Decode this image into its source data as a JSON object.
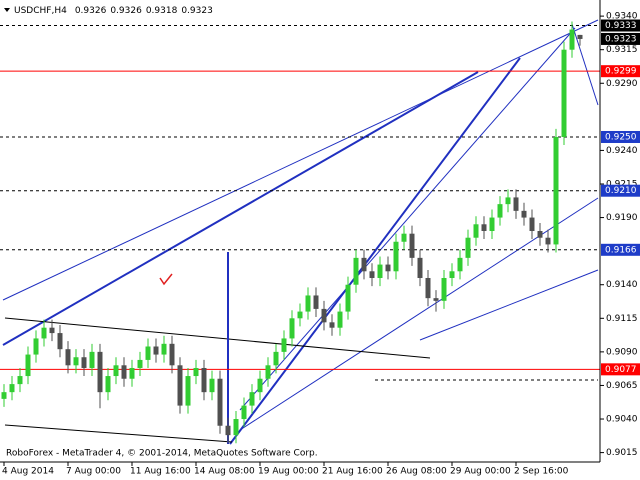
{
  "chart_data": {
    "type": "candlestick",
    "title": "USDCHF,H4",
    "footer": "RoboForex - MetaTrader 4, © 2001-2014, MetaQuotes Software Corp.",
    "up_color": "#32cd32",
    "down_color": "#505050",
    "categories": [
      "4 Aug 2014",
      null,
      null,
      null,
      null,
      null,
      null,
      null,
      "7 Aug 00:00",
      null,
      null,
      null,
      null,
      null,
      null,
      null,
      "11 Aug 16:00",
      null,
      null,
      null,
      null,
      null,
      null,
      null,
      "14 Aug 08:00",
      null,
      null,
      null,
      null,
      null,
      null,
      null,
      "19 Aug 00:00",
      null,
      null,
      null,
      null,
      null,
      null,
      null,
      "21 Aug 16:00",
      null,
      null,
      null,
      null,
      null,
      null,
      null,
      "26 Aug 08:00",
      null,
      null,
      null,
      null,
      null,
      null,
      null,
      "29 Aug 00:00",
      null,
      null,
      null,
      null,
      null,
      null,
      null,
      "2 Sep 16:00",
      null,
      null,
      null,
      null,
      null,
      null,
      null,
      null
    ],
    "open": [
      0.9055,
      0.906,
      0.9066,
      0.9072,
      0.9088,
      0.91,
      0.9108,
      0.9104,
      0.9092,
      0.908,
      0.9086,
      0.9078,
      0.909,
      0.906,
      0.9072,
      0.908,
      0.907,
      0.9078,
      0.9084,
      0.9094,
      0.9088,
      0.9096,
      0.908,
      0.905,
      0.9072,
      0.9078,
      0.906,
      0.907,
      0.9035,
      0.9028,
      0.904,
      0.905,
      0.906,
      0.907,
      0.908,
      0.909,
      0.91,
      0.9115,
      0.912,
      0.9132,
      0.9122,
      0.9112,
      0.9108,
      0.912,
      0.914,
      0.916,
      0.915,
      0.9145,
      0.9155,
      0.915,
      0.9172,
      0.9178,
      0.916,
      0.9145,
      0.913,
      0.9128,
      0.9145,
      0.915,
      0.916,
      0.9175,
      0.9185,
      0.918,
      0.919,
      0.92,
      0.9205,
      0.9195,
      0.919,
      0.918,
      0.9175,
      0.917,
      0.925,
      0.9315,
      0.9326
    ],
    "high": [
      0.9066,
      0.9072,
      0.9078,
      0.9094,
      0.9106,
      0.9114,
      0.9114,
      0.911,
      0.9098,
      0.9092,
      0.9092,
      0.9096,
      0.9096,
      0.9078,
      0.9086,
      0.9086,
      0.9084,
      0.909,
      0.91,
      0.91,
      0.9102,
      0.9102,
      0.9086,
      0.9078,
      0.9084,
      0.9084,
      0.9076,
      0.9076,
      0.9041,
      0.9046,
      0.9056,
      0.9066,
      0.9076,
      0.9086,
      0.9096,
      0.9106,
      0.9121,
      0.9126,
      0.9138,
      0.9138,
      0.9128,
      0.9118,
      0.9126,
      0.9146,
      0.9166,
      0.9166,
      0.9156,
      0.9161,
      0.9161,
      0.9178,
      0.9184,
      0.9184,
      0.9166,
      0.9151,
      0.9136,
      0.9151,
      0.9156,
      0.9166,
      0.9181,
      0.9191,
      0.9191,
      0.9196,
      0.9206,
      0.9211,
      0.9211,
      0.9201,
      0.9196,
      0.9186,
      0.9181,
      0.9256,
      0.9321,
      0.9336,
      0.9326
    ],
    "low": [
      0.9049,
      0.9054,
      0.906,
      0.9066,
      0.9082,
      0.9094,
      0.9098,
      0.9086,
      0.9074,
      0.9074,
      0.9072,
      0.9072,
      0.9048,
      0.9054,
      0.9066,
      0.9064,
      0.9064,
      0.9072,
      0.9078,
      0.9082,
      0.9082,
      0.9074,
      0.9044,
      0.9044,
      0.9066,
      0.9054,
      0.9054,
      0.9029,
      0.9022,
      0.9022,
      0.9034,
      0.9044,
      0.9054,
      0.9064,
      0.9074,
      0.9084,
      0.9094,
      0.9109,
      0.9114,
      0.9116,
      0.9106,
      0.9102,
      0.9102,
      0.9114,
      0.9134,
      0.9144,
      0.9139,
      0.9139,
      0.9144,
      0.9144,
      0.9166,
      0.9154,
      0.9139,
      0.9124,
      0.912,
      0.9122,
      0.9139,
      0.9144,
      0.9154,
      0.9169,
      0.9174,
      0.9174,
      0.9184,
      0.9194,
      0.9189,
      0.9184,
      0.9174,
      0.9169,
      0.9164,
      0.9164,
      0.9244,
      0.9309,
      0.9318
    ],
    "close": [
      0.906,
      0.9066,
      0.9072,
      0.9088,
      0.91,
      0.9108,
      0.9104,
      0.9092,
      0.908,
      0.9086,
      0.9078,
      0.909,
      0.906,
      0.9072,
      0.908,
      0.907,
      0.9078,
      0.9084,
      0.9094,
      0.9088,
      0.9096,
      0.908,
      0.905,
      0.9072,
      0.9078,
      0.906,
      0.907,
      0.9035,
      0.9028,
      0.904,
      0.905,
      0.906,
      0.907,
      0.908,
      0.909,
      0.91,
      0.9115,
      0.912,
      0.9132,
      0.9122,
      0.9112,
      0.9108,
      0.912,
      0.914,
      0.916,
      0.915,
      0.9145,
      0.9155,
      0.915,
      0.9172,
      0.9178,
      0.916,
      0.9145,
      0.913,
      0.9128,
      0.9145,
      0.915,
      0.916,
      0.9175,
      0.9185,
      0.918,
      0.919,
      0.92,
      0.9205,
      0.9195,
      0.919,
      0.918,
      0.9175,
      0.917,
      0.925,
      0.9315,
      0.933,
      0.9323
    ],
    "ylim": [
      0.9008,
      0.9352
    ],
    "yticks": [
      {
        "value": 0.934,
        "label": "0.9340"
      },
      {
        "value": 0.9315,
        "label": "0.9315"
      },
      {
        "value": 0.929,
        "label": "0.9290"
      },
      {
        "value": 0.924,
        "label": "0.9240"
      },
      {
        "value": 0.9215,
        "label": "0.9215"
      },
      {
        "value": 0.919,
        "label": "0.9190"
      },
      {
        "value": 0.914,
        "label": "0.9140"
      },
      {
        "value": 0.9115,
        "label": "0.9115"
      },
      {
        "value": 0.909,
        "label": "0.9090"
      },
      {
        "value": 0.9065,
        "label": "0.9065"
      },
      {
        "value": 0.904,
        "label": "0.9040"
      },
      {
        "value": 0.9015,
        "label": "0.9015"
      }
    ],
    "levels": [
      {
        "value": 0.9333,
        "label": "0.9333",
        "color": "#000000",
        "line": "dashed"
      },
      {
        "value": 0.9323,
        "label": "0.9323",
        "color": "#000000"
      },
      {
        "value": 0.9299,
        "label": "0.9299",
        "color": "#ff0000",
        "line": "solid"
      },
      {
        "value": 0.925,
        "label": "0.9250",
        "color": "#1e3cc8",
        "line": "dashed"
      },
      {
        "value": 0.921,
        "label": "0.9210",
        "color": "#1e3cc8",
        "line": "dashed"
      },
      {
        "value": 0.9166,
        "label": "0.9166",
        "color": "#1e3cc8",
        "line": "dashed"
      },
      {
        "value": 0.9077,
        "label": "0.9077",
        "color": "#ff0000",
        "line": "solid"
      }
    ]
  }
}
